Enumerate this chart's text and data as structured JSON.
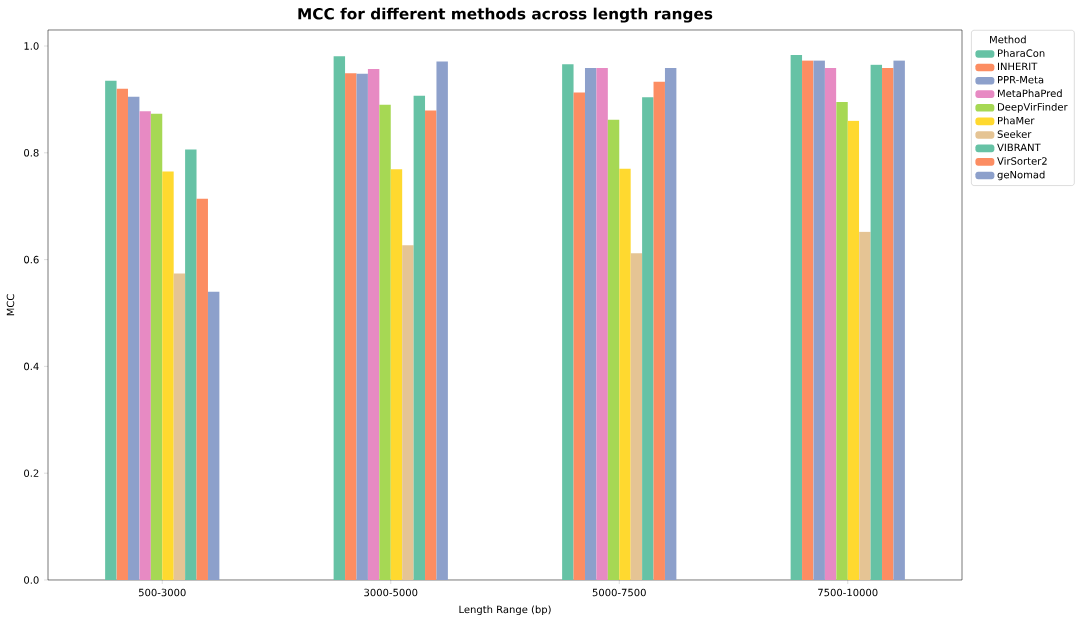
{
  "chart_data": {
    "type": "bar",
    "title": "MCC for different methods across length ranges",
    "xlabel": "Length Range (bp)",
    "ylabel": "MCC",
    "legend_title": "Method",
    "categories": [
      "500-3000",
      "3000-5000",
      "5000-7500",
      "7500-10000"
    ],
    "series": [
      {
        "name": "PharaCon",
        "color": "#66c2a5",
        "values": [
          0.935,
          0.981,
          0.966,
          0.983
        ]
      },
      {
        "name": "INHERIT",
        "color": "#fc8d62",
        "values": [
          0.92,
          0.949,
          0.913,
          0.973
        ]
      },
      {
        "name": "PPR-Meta",
        "color": "#8da0cb",
        "values": [
          0.905,
          0.948,
          0.959,
          0.973
        ]
      },
      {
        "name": "MetaPhaPred",
        "color": "#e78ac3",
        "values": [
          0.878,
          0.957,
          0.959,
          0.959
        ]
      },
      {
        "name": "DeepVirFinder",
        "color": "#a6d854",
        "values": [
          0.873,
          0.89,
          0.862,
          0.895
        ]
      },
      {
        "name": "PhaMer",
        "color": "#ffd92f",
        "values": [
          0.765,
          0.769,
          0.77,
          0.86
        ]
      },
      {
        "name": "Seeker",
        "color": "#e5c494",
        "values": [
          0.574,
          0.627,
          0.612,
          0.652
        ]
      },
      {
        "name": "VIBRANT",
        "color": "#66c2a5",
        "values": [
          0.806,
          0.907,
          0.904,
          0.965
        ]
      },
      {
        "name": "VirSorter2",
        "color": "#fc8d62",
        "values": [
          0.714,
          0.879,
          0.933,
          0.959
        ]
      },
      {
        "name": "geNomad",
        "color": "#8da0cb",
        "values": [
          0.54,
          0.971,
          0.959,
          0.973
        ]
      }
    ],
    "ylim": [
      0,
      1.03
    ],
    "yticks": [
      {
        "value": 0,
        "label": "0.0"
      },
      {
        "value": 0.2,
        "label": "0.2"
      },
      {
        "value": 0.4,
        "label": "0.4"
      },
      {
        "value": 0.6,
        "label": "0.6"
      },
      {
        "value": 0.8,
        "label": "0.8"
      },
      {
        "value": 1.0,
        "label": "1.0"
      }
    ],
    "grid": false,
    "legend": "top right"
  }
}
